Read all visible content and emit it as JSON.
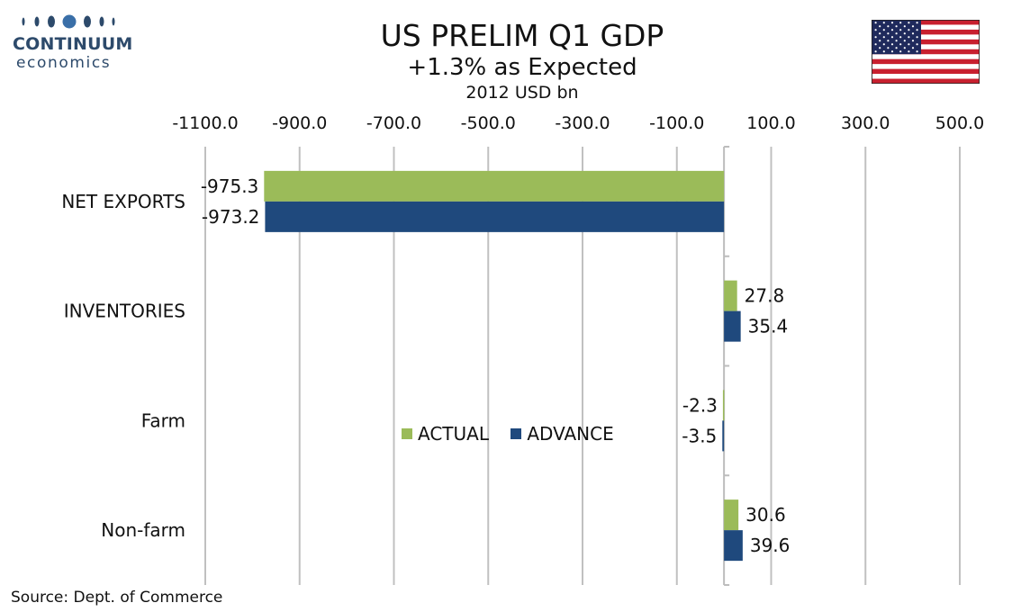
{
  "brand": {
    "name": "CONTINUUM",
    "sub": "economics",
    "color": "#2d4a6b"
  },
  "chart_data": {
    "type": "bar",
    "orientation": "horizontal",
    "title": "US PRELIM Q1 GDP",
    "subtitle": "+1.3% as Expected",
    "units": "2012 USD bn",
    "categories": [
      "NET EXPORTS",
      "INVENTORIES",
      "Farm",
      "Non-farm"
    ],
    "series": [
      {
        "name": "ACTUAL",
        "color": "#9bbb59",
        "values": [
          -975.3,
          27.8,
          -2.3,
          30.6
        ]
      },
      {
        "name": "ADVANCE",
        "color": "#1f497d",
        "values": [
          -973.2,
          35.4,
          -3.5,
          39.6
        ]
      }
    ],
    "xlim": [
      -1100,
      500
    ],
    "xticks": [
      "-1100.0",
      "-900.0",
      "-700.0",
      "-500.0",
      "-300.0",
      "-100.0",
      "100.0",
      "300.0",
      "500.0"
    ],
    "xtick_values": [
      -1100,
      -900,
      -700,
      -500,
      -300,
      -100,
      100,
      300,
      500
    ],
    "grid": "vertical",
    "x_axis_position": "top",
    "legend_position": "center"
  },
  "source": "Source: Dept. of Commerce",
  "flag_icon": "us-flag-icon"
}
